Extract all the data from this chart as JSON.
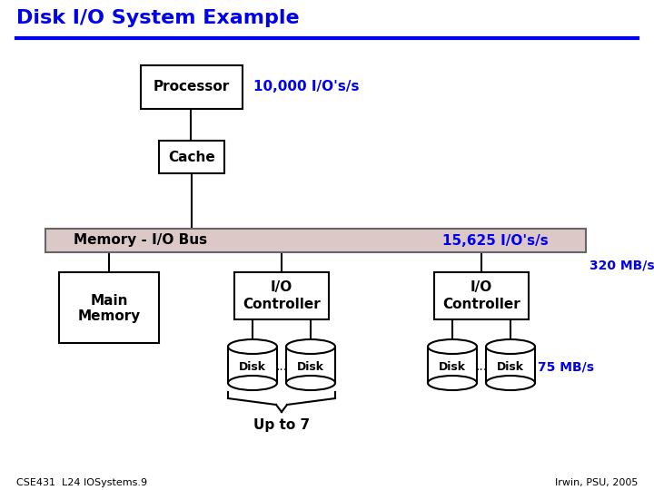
{
  "title": "Disk I/O System Example",
  "title_color": "#0000ee",
  "bg_color": "#ffffff",
  "bus_face_color": "#ddc8c8",
  "bus_edge_color": "#666666",
  "bus_label": "Memory - I/O Bus",
  "bus_label2": "15,625 I/O's/s",
  "label_10k": "10,000 I/O's/s",
  "label_320": "320 MB/s",
  "label_75": "75 MB/s",
  "label_upto7": "Up to 7",
  "footer_left": "CSE431  L24 IOSystems.9",
  "footer_right": "Irwin, PSU, 2005",
  "blue_color": "#0000ee",
  "black": "#000000"
}
